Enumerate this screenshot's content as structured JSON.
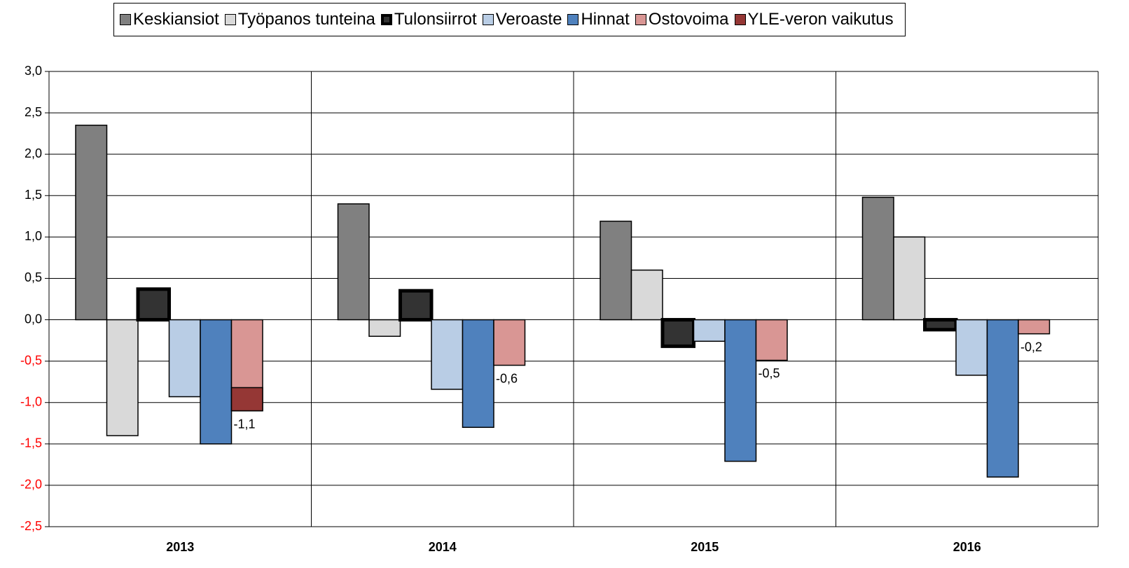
{
  "chart_data": {
    "type": "bar",
    "categories": [
      "2013",
      "2014",
      "2015",
      "2016"
    ],
    "series": [
      {
        "name": "Keskiansiot",
        "color": "#808080",
        "values": [
          2.35,
          1.4,
          1.19,
          1.48
        ]
      },
      {
        "name": "Työpanos tunteina",
        "color": "#d9d9d9",
        "values": [
          -1.4,
          -0.2,
          0.6,
          1.0
        ]
      },
      {
        "name": "Tulonsiirrot",
        "color": "#333333",
        "thick_border": true,
        "values": [
          0.37,
          0.35,
          -0.32,
          -0.12
        ]
      },
      {
        "name": "Veroaste",
        "color": "#b9cde5",
        "values": [
          -0.93,
          -0.84,
          -0.26,
          -0.67
        ]
      },
      {
        "name": "Hinnat",
        "color": "#4f81bd",
        "values": [
          -1.5,
          -1.3,
          -1.71,
          -1.9
        ]
      },
      {
        "name": "Ostovoima",
        "color": "#d99694",
        "values": [
          -1.1,
          -0.55,
          -0.49,
          -0.17
        ],
        "value_labels": [
          "-1,1",
          "-0,6",
          "-0,5",
          "-0,2"
        ]
      },
      {
        "name": "YLE-veron vaikutus",
        "color": "#953735",
        "part_of": 5,
        "values": [
          -0.28,
          null,
          null,
          null
        ]
      }
    ],
    "ylim": [
      -2.5,
      3.0
    ],
    "yticks": [
      {
        "value": -2.5,
        "label": "-2,5"
      },
      {
        "value": -2.0,
        "label": "-2,0"
      },
      {
        "value": -1.5,
        "label": "-1,5"
      },
      {
        "value": -1.0,
        "label": "-1,0"
      },
      {
        "value": -0.5,
        "label": "-0,5"
      },
      {
        "value": 0,
        "label": "0,0"
      },
      {
        "value": 0.5,
        "label": "0,5"
      },
      {
        "value": 1.0,
        "label": "1,0"
      },
      {
        "value": 1.5,
        "label": "1,5"
      },
      {
        "value": 2.0,
        "label": "2,0"
      },
      {
        "value": 2.5,
        "label": "2,5"
      },
      {
        "value": 3.0,
        "label": "3,0"
      }
    ],
    "negative_tick_color": "#ff0000",
    "grid": true,
    "legend": "top"
  }
}
